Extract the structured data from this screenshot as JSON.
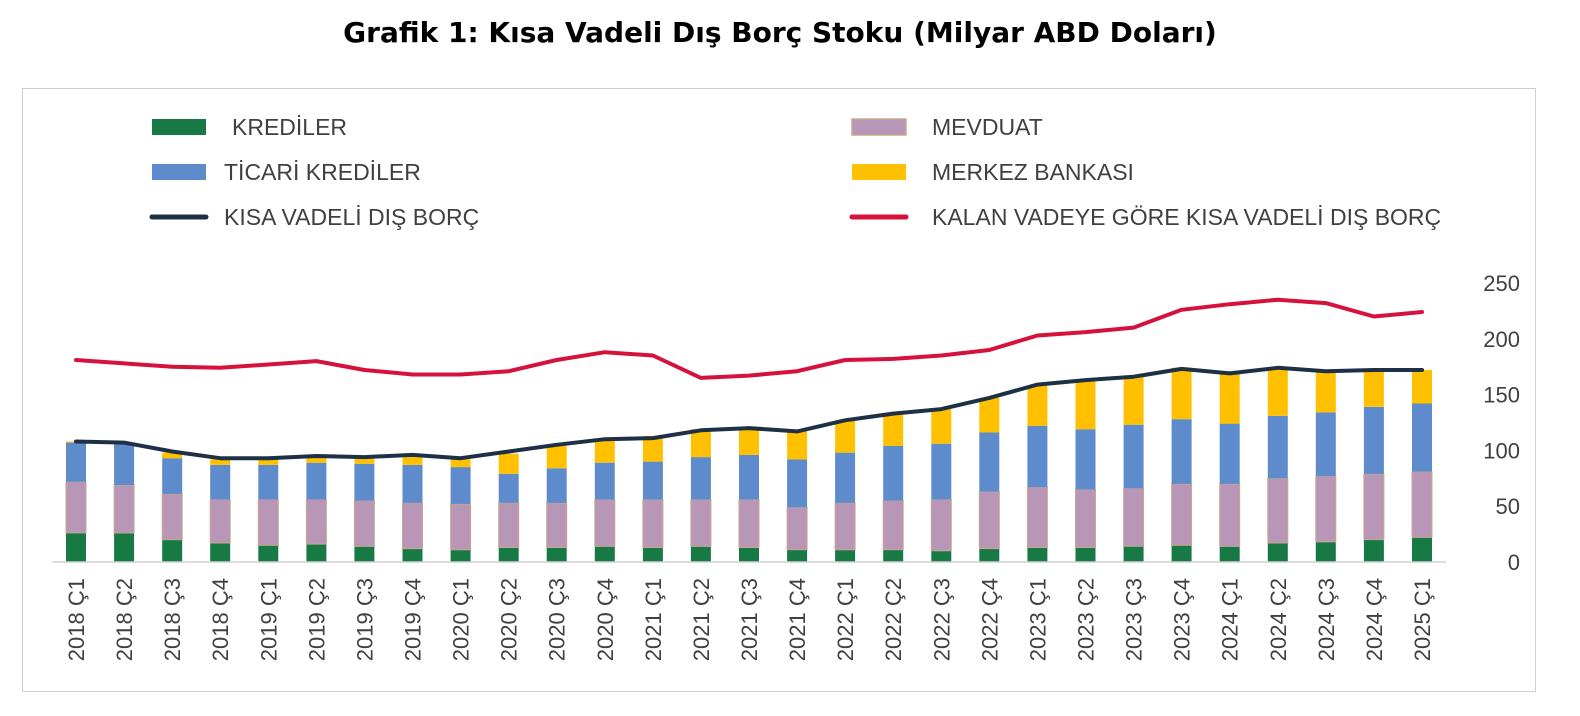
{
  "title": "Grafik 1: Kısa Vadeli Dış Borç Stoku (Milyar ABD Doları)",
  "colors": {
    "krediler": "#177a45",
    "mevduat": "#b896b7",
    "ticari": "#5d8bcb",
    "merkez": "#ffc000",
    "kvdb": "#1e3046",
    "kalan": "#d5123c",
    "mevduat_edge": "#c9a88a",
    "axis": "#d0d0d0"
  },
  "chart_data": {
    "type": "bar",
    "stacked": true,
    "title": "Grafik 1: Kısa Vadeli Dış Borç Stoku (Milyar ABD Doları)",
    "xlabel": "",
    "ylabel": "",
    "ylim": [
      0,
      250
    ],
    "yticks": [
      "0",
      "50",
      "100",
      "150",
      "200",
      "250"
    ],
    "grid": false,
    "legend_position": "top",
    "categories": [
      "2018 Ç1",
      "2018 Ç2",
      "2018 Ç3",
      "2018 Ç4",
      "2019 Ç1",
      "2019 Ç2",
      "2019 Ç3",
      "2019 Ç4",
      "2020 Ç1",
      "2020 Ç2",
      "2020 Ç3",
      "2020 Ç4",
      "2021 Ç1",
      "2021 Ç2",
      "2021 Ç3",
      "2021 Ç4",
      "2022 Ç1",
      "2022 Ç2",
      "2022 Ç3",
      "2022 Ç4",
      "2023 Ç1",
      "2023 Ç2",
      "2023 Ç3",
      "2023 Ç4",
      "2024 Ç1",
      "2024 Ç2",
      "2024 Ç3",
      "2024 Ç4",
      "2025 Ç1"
    ],
    "series": [
      {
        "name": "KREDİLER",
        "kind": "bar",
        "color_key": "krediler",
        "values": [
          26,
          26,
          20,
          17,
          15,
          16,
          14,
          12,
          11,
          13,
          13,
          14,
          13,
          14,
          13,
          11,
          11,
          11,
          10,
          12,
          13,
          13,
          14,
          15,
          14,
          17,
          18,
          20,
          22
        ]
      },
      {
        "name": "MEVDUAT",
        "kind": "bar",
        "color_key": "mevduat",
        "values": [
          46,
          43,
          41,
          39,
          41,
          40,
          41,
          41,
          41,
          40,
          40,
          42,
          43,
          42,
          43,
          38,
          42,
          44,
          46,
          51,
          54,
          52,
          52,
          55,
          56,
          58,
          59,
          59,
          59
        ]
      },
      {
        "name": "TİCARİ KREDİLER",
        "kind": "bar",
        "color_key": "ticari",
        "values": [
          35,
          37,
          32,
          31,
          31,
          33,
          33,
          34,
          33,
          26,
          31,
          33,
          34,
          38,
          40,
          43,
          45,
          49,
          50,
          53,
          55,
          54,
          57,
          58,
          54,
          56,
          57,
          60,
          61
        ]
      },
      {
        "name": "MERKEZ BANKASI",
        "kind": "bar",
        "color_key": "merkez",
        "values": [
          1,
          1,
          5,
          5,
          5,
          5,
          5,
          7,
          7,
          18,
          20,
          21,
          23,
          25,
          25,
          25,
          29,
          29,
          31,
          31,
          36,
          44,
          44,
          46,
          47,
          43,
          38,
          33,
          30
        ]
      },
      {
        "name": "KISA VADELİ DIŞ BORÇ",
        "kind": "line",
        "color_key": "kvdb",
        "values": [
          108,
          107,
          99,
          93,
          93,
          95,
          94,
          96,
          93,
          99,
          105,
          110,
          111,
          118,
          120,
          117,
          127,
          133,
          137,
          147,
          159,
          163,
          166,
          173,
          169,
          174,
          171,
          172,
          172
        ]
      },
      {
        "name": "KALAN VADEYE GÖRE KISA VADELİ DIŞ BORÇ",
        "kind": "line",
        "color_key": "kalan",
        "values": [
          181,
          178,
          175,
          174,
          177,
          180,
          172,
          168,
          168,
          171,
          181,
          188,
          185,
          165,
          167,
          171,
          181,
          182,
          185,
          190,
          203,
          206,
          210,
          226,
          231,
          235,
          232,
          220,
          224
        ]
      }
    ]
  }
}
